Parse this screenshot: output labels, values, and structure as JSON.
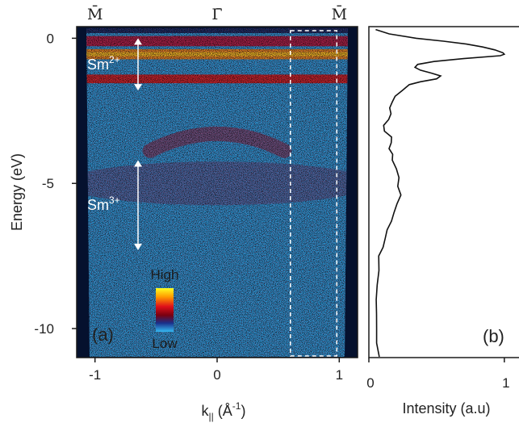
{
  "chart_data": [
    {
      "panel": "(a)",
      "type": "heatmap",
      "ylabel": "Energy (eV)",
      "xlabel_main": "k",
      "xlabel_sub": "||",
      "xlabel_unit": " (Å",
      "xlabel_exp": "-1",
      "xlabel_close": ")",
      "xlim": [
        -1.15,
        1.15
      ],
      "ylim": [
        -11,
        0.4
      ],
      "x_ticks": [
        -1,
        0,
        1
      ],
      "x_tick_labels": [
        "-1",
        "0",
        "1"
      ],
      "y_ticks": [
        0,
        -5,
        -10
      ],
      "y_tick_labels": [
        "0",
        "-5",
        "-10"
      ],
      "top_labels": [
        {
          "x": -1,
          "text": "M̄"
        },
        {
          "x": 0,
          "text": "Γ̄"
        },
        {
          "x": 1,
          "text": "M̄"
        }
      ],
      "bands": [
        {
          "energy": -0.1,
          "width": 0.35,
          "intensity": 0.45
        },
        {
          "energy": -0.55,
          "width": 0.35,
          "intensity": 1.0
        },
        {
          "energy": -1.4,
          "width": 0.3,
          "intensity": 0.75
        },
        {
          "energy": -3.6,
          "width": 0.5,
          "intensity": 0.45
        },
        {
          "energy": -5.0,
          "width": 1.5,
          "intensity": 0.3
        }
      ],
      "annotations": [
        {
          "text": "Sm",
          "superscript": "2+",
          "e_top": 0,
          "e_bottom": -1.8
        },
        {
          "text": "Sm",
          "superscript": "3+",
          "e_top": -4.2,
          "e_bottom": -7.3
        }
      ],
      "integration_window": {
        "k_min": 0.6,
        "k_max": 0.98
      },
      "colorbar": {
        "high_label": "High",
        "low_label": "Low"
      }
    },
    {
      "panel": "(b)",
      "type": "line",
      "xlabel": "Intensity (a.u)",
      "xlim": [
        0,
        1.15
      ],
      "x_ticks": [
        0,
        1
      ],
      "x_tick_labels": [
        "0",
        "1"
      ],
      "ylim": [
        -11,
        0.4
      ],
      "series": [
        {
          "energy": [
            0.3,
            0.15,
            0.0,
            -0.1,
            -0.2,
            -0.3,
            -0.4,
            -0.5,
            -0.55,
            -0.6,
            -0.7,
            -0.8,
            -0.9,
            -1.0,
            -1.1,
            -1.2,
            -1.3,
            -1.4,
            -1.5,
            -1.6,
            -1.8,
            -2.0,
            -2.2,
            -2.4,
            -2.6,
            -2.8,
            -3.0,
            -3.2,
            -3.4,
            -3.6,
            -3.8,
            -4.0,
            -4.2,
            -4.5,
            -4.8,
            -5.1,
            -5.4,
            -5.7,
            -6.0,
            -6.3,
            -6.6,
            -6.9,
            -7.2,
            -7.5,
            -8.0,
            -8.5,
            -9.0,
            -9.5,
            -10.0,
            -10.5,
            -11.0
          ],
          "intensity": [
            0.05,
            0.15,
            0.35,
            0.55,
            0.72,
            0.84,
            0.93,
            0.99,
            1.0,
            0.97,
            0.7,
            0.48,
            0.36,
            0.34,
            0.38,
            0.46,
            0.53,
            0.5,
            0.38,
            0.3,
            0.24,
            0.2,
            0.17,
            0.15,
            0.17,
            0.14,
            0.11,
            0.12,
            0.16,
            0.17,
            0.15,
            0.17,
            0.18,
            0.2,
            0.22,
            0.22,
            0.23,
            0.21,
            0.19,
            0.16,
            0.14,
            0.12,
            0.1,
            0.08,
            0.07,
            0.06,
            0.06,
            0.05,
            0.06,
            0.06,
            0.07
          ]
        }
      ]
    }
  ]
}
